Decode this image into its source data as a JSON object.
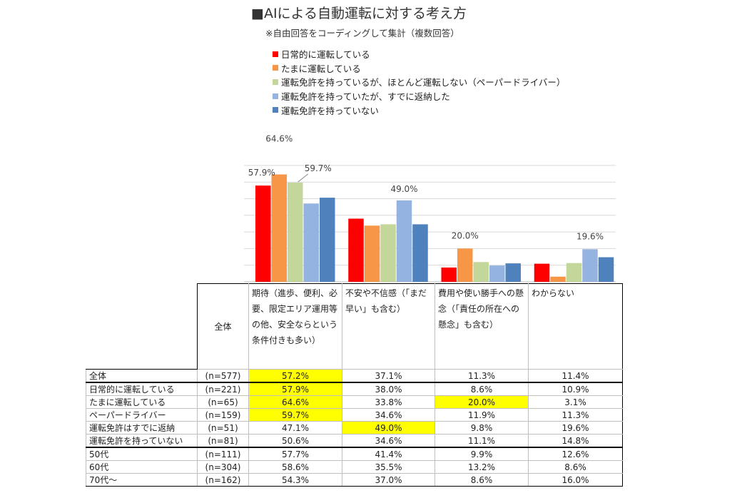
{
  "title": "■AIによる自動運転に対する考え方",
  "subtitle": "※自由回答をコーディングして集計（複数回答）",
  "legend": [
    {
      "label": "日常的に運転している",
      "color": "#ff0000"
    },
    {
      "label": "たまに運転している",
      "color": "#f79646"
    },
    {
      "label": "運転免許を持っているが、ほとんど運転しない（ペーパードライバー）",
      "color": "#c4d79b"
    },
    {
      "label": "運転免許を持っていたが、すでに返納した",
      "color": "#95b3e0"
    },
    {
      "label": "運転免許を持っていない",
      "color": "#4f81bd"
    }
  ],
  "chart_data": {
    "type": "bar",
    "title": "■AIによる自動運転に対する考え方",
    "categories": [
      "期待",
      "不安や不信感",
      "費用や使い勝手への懸念",
      "わからない"
    ],
    "series": [
      {
        "name": "日常的に運転している",
        "color": "#ff0000",
        "values": [
          57.9,
          38.0,
          8.6,
          10.9
        ]
      },
      {
        "name": "たまに運転している",
        "color": "#f79646",
        "values": [
          64.6,
          33.8,
          20.0,
          3.1
        ]
      },
      {
        "name": "運転免許を持っているが、ほとんど運転しない（ペーパードライバー）",
        "color": "#c4d79b",
        "values": [
          59.7,
          34.6,
          11.9,
          11.3
        ]
      },
      {
        "name": "運転免許を持っていたが、すでに返納した",
        "color": "#95b3e0",
        "values": [
          47.1,
          49.0,
          9.8,
          19.6
        ]
      },
      {
        "name": "運転免許を持っていない",
        "color": "#4f81bd",
        "values": [
          50.6,
          34.6,
          11.1,
          14.8
        ]
      }
    ],
    "ylim": [
      0,
      70
    ],
    "gridlines": [
      0,
      10,
      20,
      30,
      40,
      50,
      60,
      70
    ],
    "data_labels": [
      {
        "category": 0,
        "series": 0,
        "text": "57.9%"
      },
      {
        "category": 0,
        "series": 1,
        "text": "64.6%"
      },
      {
        "category": 0,
        "series": 2,
        "text": "59.7%"
      },
      {
        "category": 1,
        "series": 3,
        "text": "49.0%"
      },
      {
        "category": 2,
        "series": 1,
        "text": "20.0%"
      },
      {
        "category": 3,
        "series": 3,
        "text": "19.6%"
      }
    ]
  },
  "table": {
    "all_header": "全体",
    "col_headers": [
      "期待（進歩、便利、必要、限定エリア運用等の他、安全ならという条件付きも多い）",
      "不安や不信感（「まだ早い」も含む）",
      "費用や使い勝手への懸念（「責任の所在への懸念」も含む）",
      "わからない"
    ],
    "rows": [
      {
        "label": "全体",
        "n": "(n=577)",
        "values": [
          "57.2%",
          "37.1%",
          "11.3%",
          "11.4%"
        ],
        "highlight": [
          true,
          false,
          false,
          false
        ]
      },
      {
        "label": "日常的に運転している",
        "n": "(n=221)",
        "values": [
          "57.9%",
          "38.0%",
          "8.6%",
          "10.9%"
        ],
        "highlight": [
          true,
          false,
          false,
          false
        ]
      },
      {
        "label": "たまに運転している",
        "n": "(n=65)",
        "values": [
          "64.6%",
          "33.8%",
          "20.0%",
          "3.1%"
        ],
        "highlight": [
          true,
          false,
          true,
          false
        ]
      },
      {
        "label": "ペーパードライバー",
        "n": "(n=159)",
        "values": [
          "59.7%",
          "34.6%",
          "11.9%",
          "11.3%"
        ],
        "highlight": [
          true,
          false,
          false,
          false
        ]
      },
      {
        "label": "運転免許はすでに返納",
        "n": "(n=51)",
        "values": [
          "47.1%",
          "49.0%",
          "9.8%",
          "19.6%"
        ],
        "highlight": [
          false,
          true,
          false,
          false
        ]
      },
      {
        "label": "運転免許を持っていない",
        "n": "(n=81)",
        "values": [
          "50.6%",
          "34.6%",
          "11.1%",
          "14.8%"
        ],
        "highlight": [
          false,
          false,
          false,
          false
        ]
      },
      {
        "label": "50代",
        "n": "(n=111)",
        "values": [
          "57.7%",
          "41.4%",
          "9.9%",
          "12.6%"
        ],
        "highlight": [
          false,
          false,
          false,
          false
        ]
      },
      {
        "label": "60代",
        "n": "(n=304)",
        "values": [
          "58.6%",
          "35.5%",
          "13.2%",
          "8.6%"
        ],
        "highlight": [
          false,
          false,
          false,
          false
        ]
      },
      {
        "label": "70代～",
        "n": "(n=162)",
        "values": [
          "54.3%",
          "37.0%",
          "8.6%",
          "16.0%"
        ],
        "highlight": [
          false,
          false,
          false,
          false
        ]
      }
    ]
  }
}
